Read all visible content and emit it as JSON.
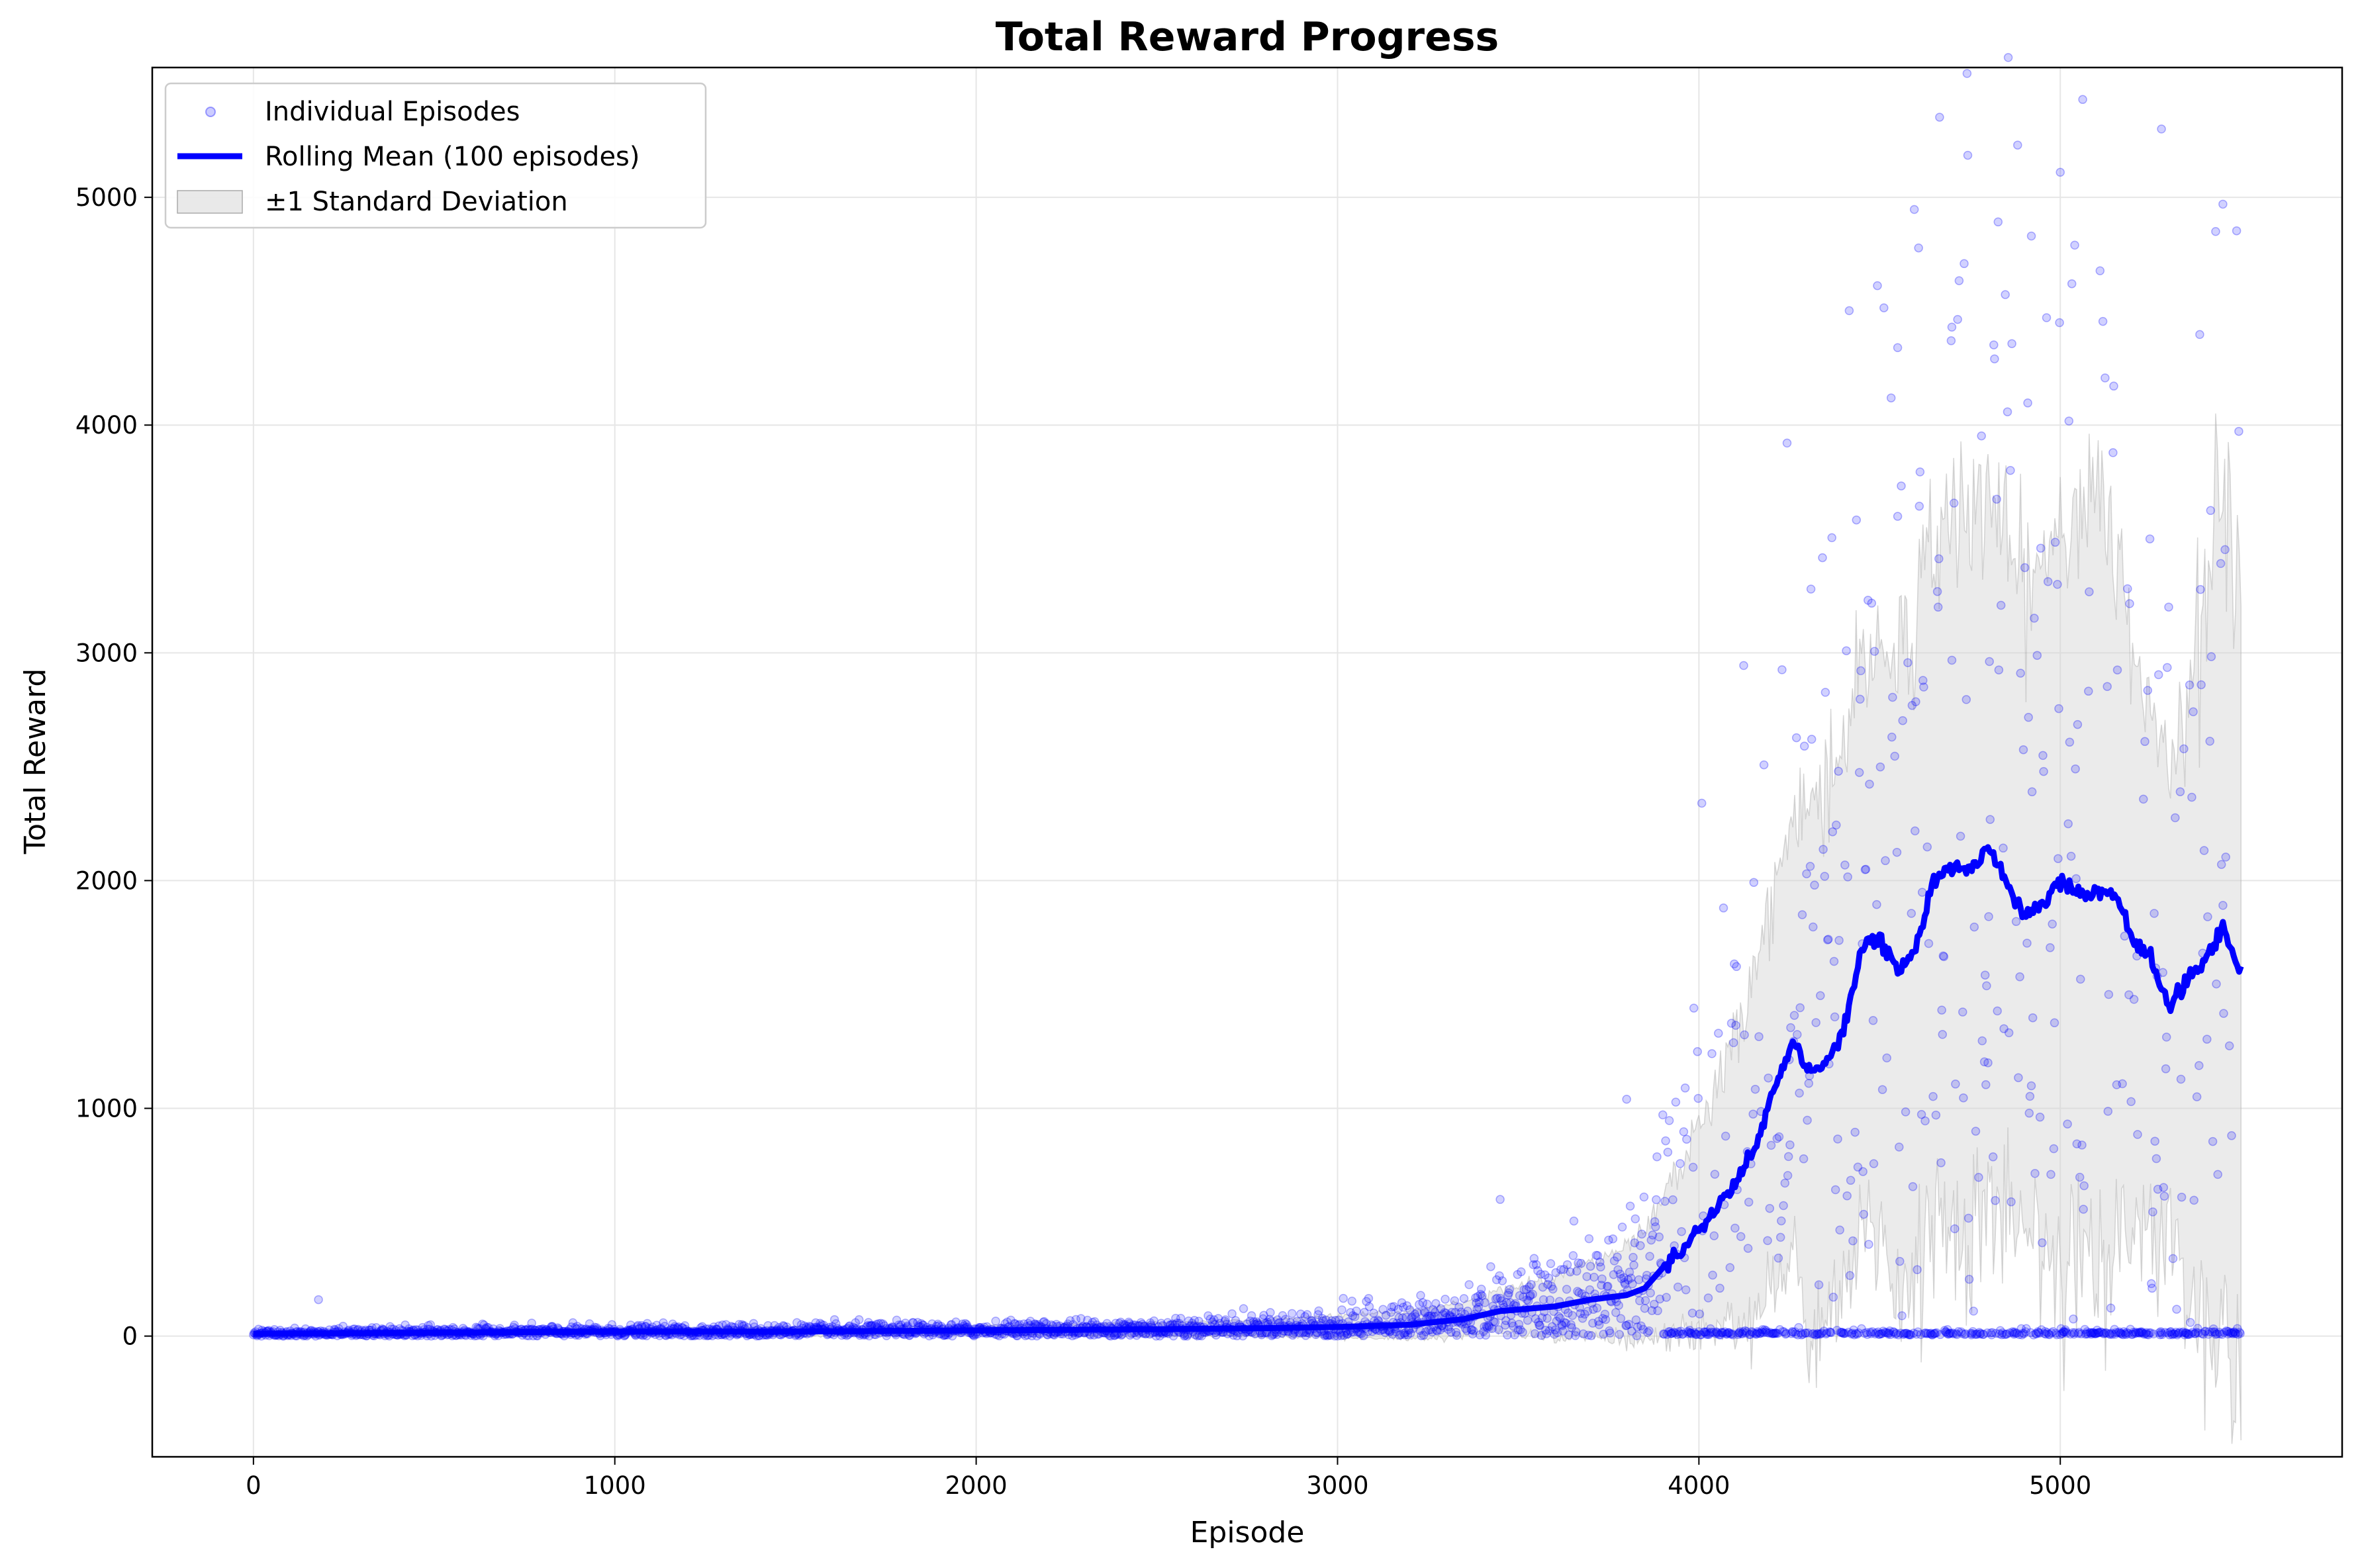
{
  "chart_data": {
    "type": "scatter",
    "title": "Total Reward Progress",
    "xlabel": "Episode",
    "ylabel": "Total Reward",
    "xlim": [
      -280,
      5780
    ],
    "ylim": [
      -530,
      5570
    ],
    "xticks": [
      0,
      1000,
      2000,
      3000,
      4000,
      5000
    ],
    "yticks": [
      0,
      1000,
      2000,
      3000,
      4000,
      5000
    ],
    "grid": true,
    "legend_position": "upper left",
    "episodes": 5500,
    "colors": {
      "scatter": "#0000ff",
      "mean": "#0000ff",
      "band": "#d3d3d3"
    },
    "legend": [
      {
        "label": "Individual Episodes",
        "kind": "scatter"
      },
      {
        "label": "Rolling Mean (100 episodes)",
        "kind": "line"
      },
      {
        "label": "±1 Standard Deviation",
        "kind": "band"
      }
    ],
    "series": [
      {
        "name": "Rolling Mean (100 episodes)",
        "type": "line",
        "x": [
          0,
          500,
          1000,
          1500,
          2000,
          2500,
          2800,
          3000,
          3200,
          3350,
          3450,
          3600,
          3700,
          3800,
          3850,
          3900,
          4000,
          4100,
          4150,
          4200,
          4250,
          4270,
          4300,
          4350,
          4400,
          4450,
          4500,
          4550,
          4600,
          4650,
          4700,
          4750,
          4800,
          4850,
          4900,
          4950,
          5000,
          5050,
          5100,
          5150,
          5200,
          5250,
          5300,
          5350,
          5400,
          5450,
          5500
        ],
        "y": [
          10,
          15,
          20,
          20,
          25,
          30,
          35,
          40,
          50,
          75,
          110,
          130,
          160,
          180,
          210,
          300,
          460,
          680,
          800,
          1050,
          1250,
          1280,
          1150,
          1200,
          1350,
          1700,
          1750,
          1600,
          1700,
          2000,
          2050,
          2050,
          2150,
          2000,
          1850,
          1900,
          2000,
          1950,
          1950,
          1950,
          1750,
          1650,
          1450,
          1550,
          1650,
          1800,
          1600
        ]
      },
      {
        "name": "±1 Standard Deviation",
        "type": "band",
        "x": [
          0,
          500,
          1000,
          1500,
          2000,
          2500,
          2800,
          3000,
          3200,
          3350,
          3450,
          3600,
          3700,
          3800,
          3850,
          3900,
          4000,
          4100,
          4150,
          4200,
          4250,
          4270,
          4300,
          4350,
          4400,
          4450,
          4500,
          4550,
          4600,
          4650,
          4700,
          4750,
          4800,
          4850,
          4900,
          4950,
          5000,
          5050,
          5100,
          5150,
          5200,
          5250,
          5300,
          5350,
          5400,
          5450,
          5500
        ],
        "upper": [
          20,
          30,
          35,
          40,
          45,
          60,
          70,
          90,
          110,
          150,
          200,
          260,
          320,
          380,
          450,
          600,
          900,
          1300,
          1550,
          1900,
          2200,
          2300,
          2350,
          2450,
          2600,
          2950,
          3050,
          3000,
          3150,
          3450,
          3650,
          3650,
          3700,
          3450,
          3300,
          3350,
          3600,
          3650,
          3600,
          3500,
          3100,
          2800,
          2500,
          2900,
          3350,
          3600,
          3400
        ],
        "lower": [
          0,
          0,
          5,
          0,
          5,
          0,
          0,
          -10,
          -10,
          0,
          20,
          0,
          0,
          -20,
          -30,
          0,
          20,
          60,
          50,
          200,
          300,
          260,
          0,
          0,
          100,
          450,
          450,
          200,
          250,
          550,
          450,
          450,
          600,
          550,
          400,
          450,
          400,
          250,
          300,
          400,
          400,
          500,
          400,
          200,
          0,
          0,
          0
        ]
      }
    ],
    "scatter": {
      "name": "Individual Episodes",
      "note_values": [],
      "highlight_points": [
        {
          "x": 5280,
          "y": 5300
        },
        {
          "x": 5000,
          "y": 5110
        },
        {
          "x": 5450,
          "y": 4970
        },
        {
          "x": 4920,
          "y": 4830
        },
        {
          "x": 5040,
          "y": 4790
        },
        {
          "x": 5430,
          "y": 4850
        },
        {
          "x": 4550,
          "y": 4340
        },
        {
          "x": 4700,
          "y": 4430
        },
        {
          "x": 3800,
          "y": 1040
        },
        {
          "x": 3450,
          "y": 600
        },
        {
          "x": 180,
          "y": 160
        }
      ]
    }
  }
}
